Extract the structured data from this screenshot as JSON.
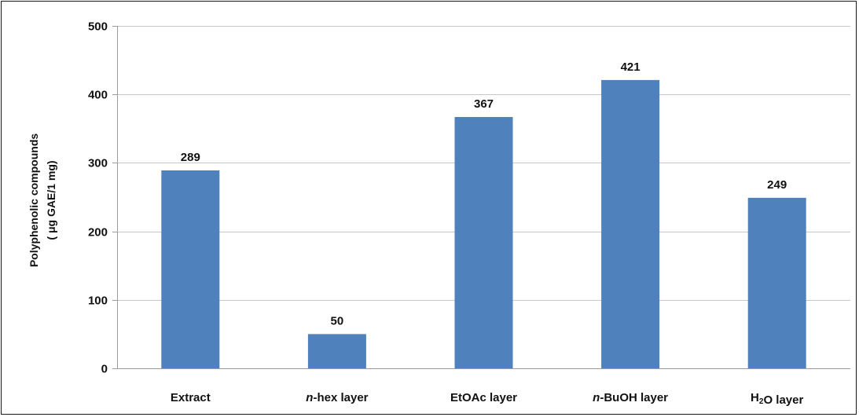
{
  "chart_data": {
    "type": "bar",
    "categories": [
      "Extract",
      "n-hex layer",
      "EtOAc layer",
      "n-BuOH layer",
      "H2O layer"
    ],
    "category_parts": [
      [
        {
          "t": "Extract",
          "s": "n"
        }
      ],
      [
        {
          "t": "n",
          "s": "i"
        },
        {
          "t": "-hex layer",
          "s": "n"
        }
      ],
      [
        {
          "t": "EtOAc layer",
          "s": "n"
        }
      ],
      [
        {
          "t": "n",
          "s": "i"
        },
        {
          "t": "-BuOH layer",
          "s": "n"
        }
      ],
      [
        {
          "t": "H",
          "s": "n"
        },
        {
          "t": "2",
          "s": "sub"
        },
        {
          "t": "O layer",
          "s": "n"
        }
      ]
    ],
    "values": [
      289,
      50,
      367,
      421,
      249
    ],
    "data_labels": [
      "289",
      "50",
      "367",
      "421",
      "249"
    ],
    "ylabel_lines": [
      "Polyphenolic compounds",
      "( μg GAE/1 mg)"
    ],
    "xlabel": "",
    "ylim": [
      0,
      500
    ],
    "yticks": [
      0,
      100,
      200,
      300,
      400,
      500
    ],
    "ytick_labels": [
      "0",
      "100",
      "200",
      "300",
      "400",
      "500"
    ],
    "grid": true,
    "legend": "none",
    "bar_color": "#4f81bd"
  }
}
